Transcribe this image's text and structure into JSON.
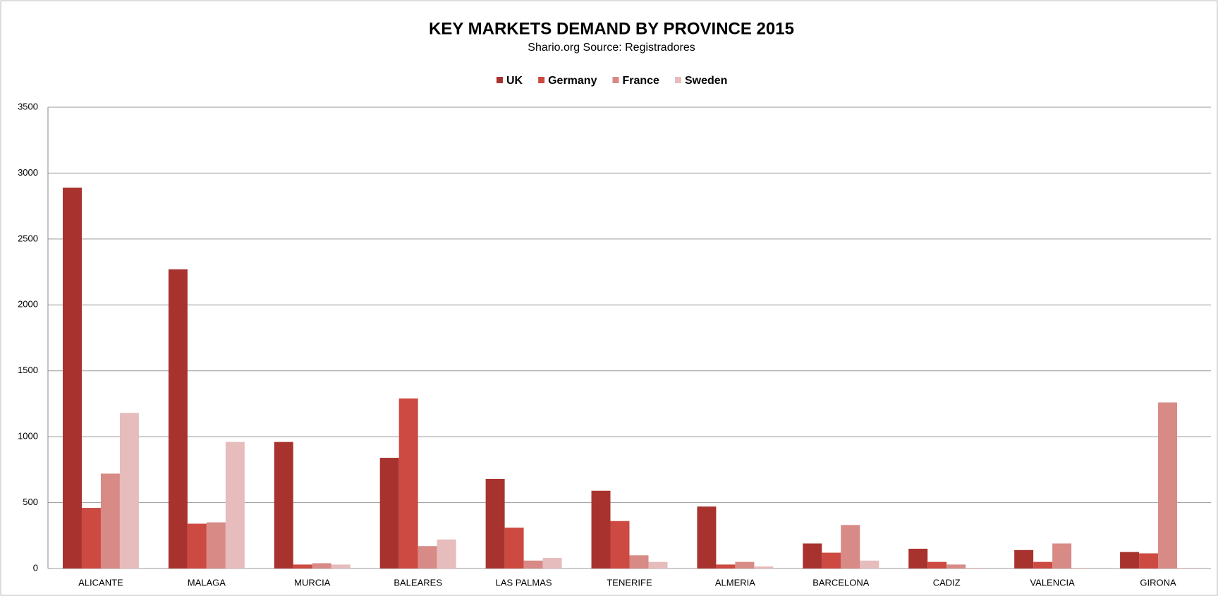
{
  "chart_data": {
    "type": "bar",
    "title": "KEY MARKETS DEMAND BY PROVINCE 2015",
    "subtitle": "Shario.org Source: Registradores",
    "categories": [
      "ALICANTE",
      "MALAGA",
      "MURCIA",
      "BALEARES",
      "LAS PALMAS",
      "TENERIFE",
      "ALMERIA",
      "BARCELONA",
      "CADIZ",
      "VALENCIA",
      "GIRONA"
    ],
    "series": [
      {
        "name": "UK",
        "color": "#a8332e",
        "values": [
          2890,
          2270,
          960,
          840,
          680,
          590,
          470,
          190,
          150,
          140,
          125
        ]
      },
      {
        "name": "Germany",
        "color": "#cc4a41",
        "values": [
          460,
          340,
          30,
          1290,
          310,
          360,
          30,
          120,
          50,
          50,
          115
        ]
      },
      {
        "name": "France",
        "color": "#d88a86",
        "values": [
          720,
          350,
          40,
          170,
          60,
          100,
          50,
          330,
          30,
          190,
          1260
        ]
      },
      {
        "name": "Sweden",
        "color": "#e6bcbc",
        "values": [
          1180,
          960,
          30,
          220,
          80,
          50,
          15,
          60,
          5,
          5,
          5
        ]
      }
    ],
    "ylim": [
      0,
      3500
    ],
    "yticks": [
      0,
      500,
      1000,
      1500,
      2000,
      2500,
      3000,
      3500
    ],
    "grid": true,
    "legend": "top"
  }
}
